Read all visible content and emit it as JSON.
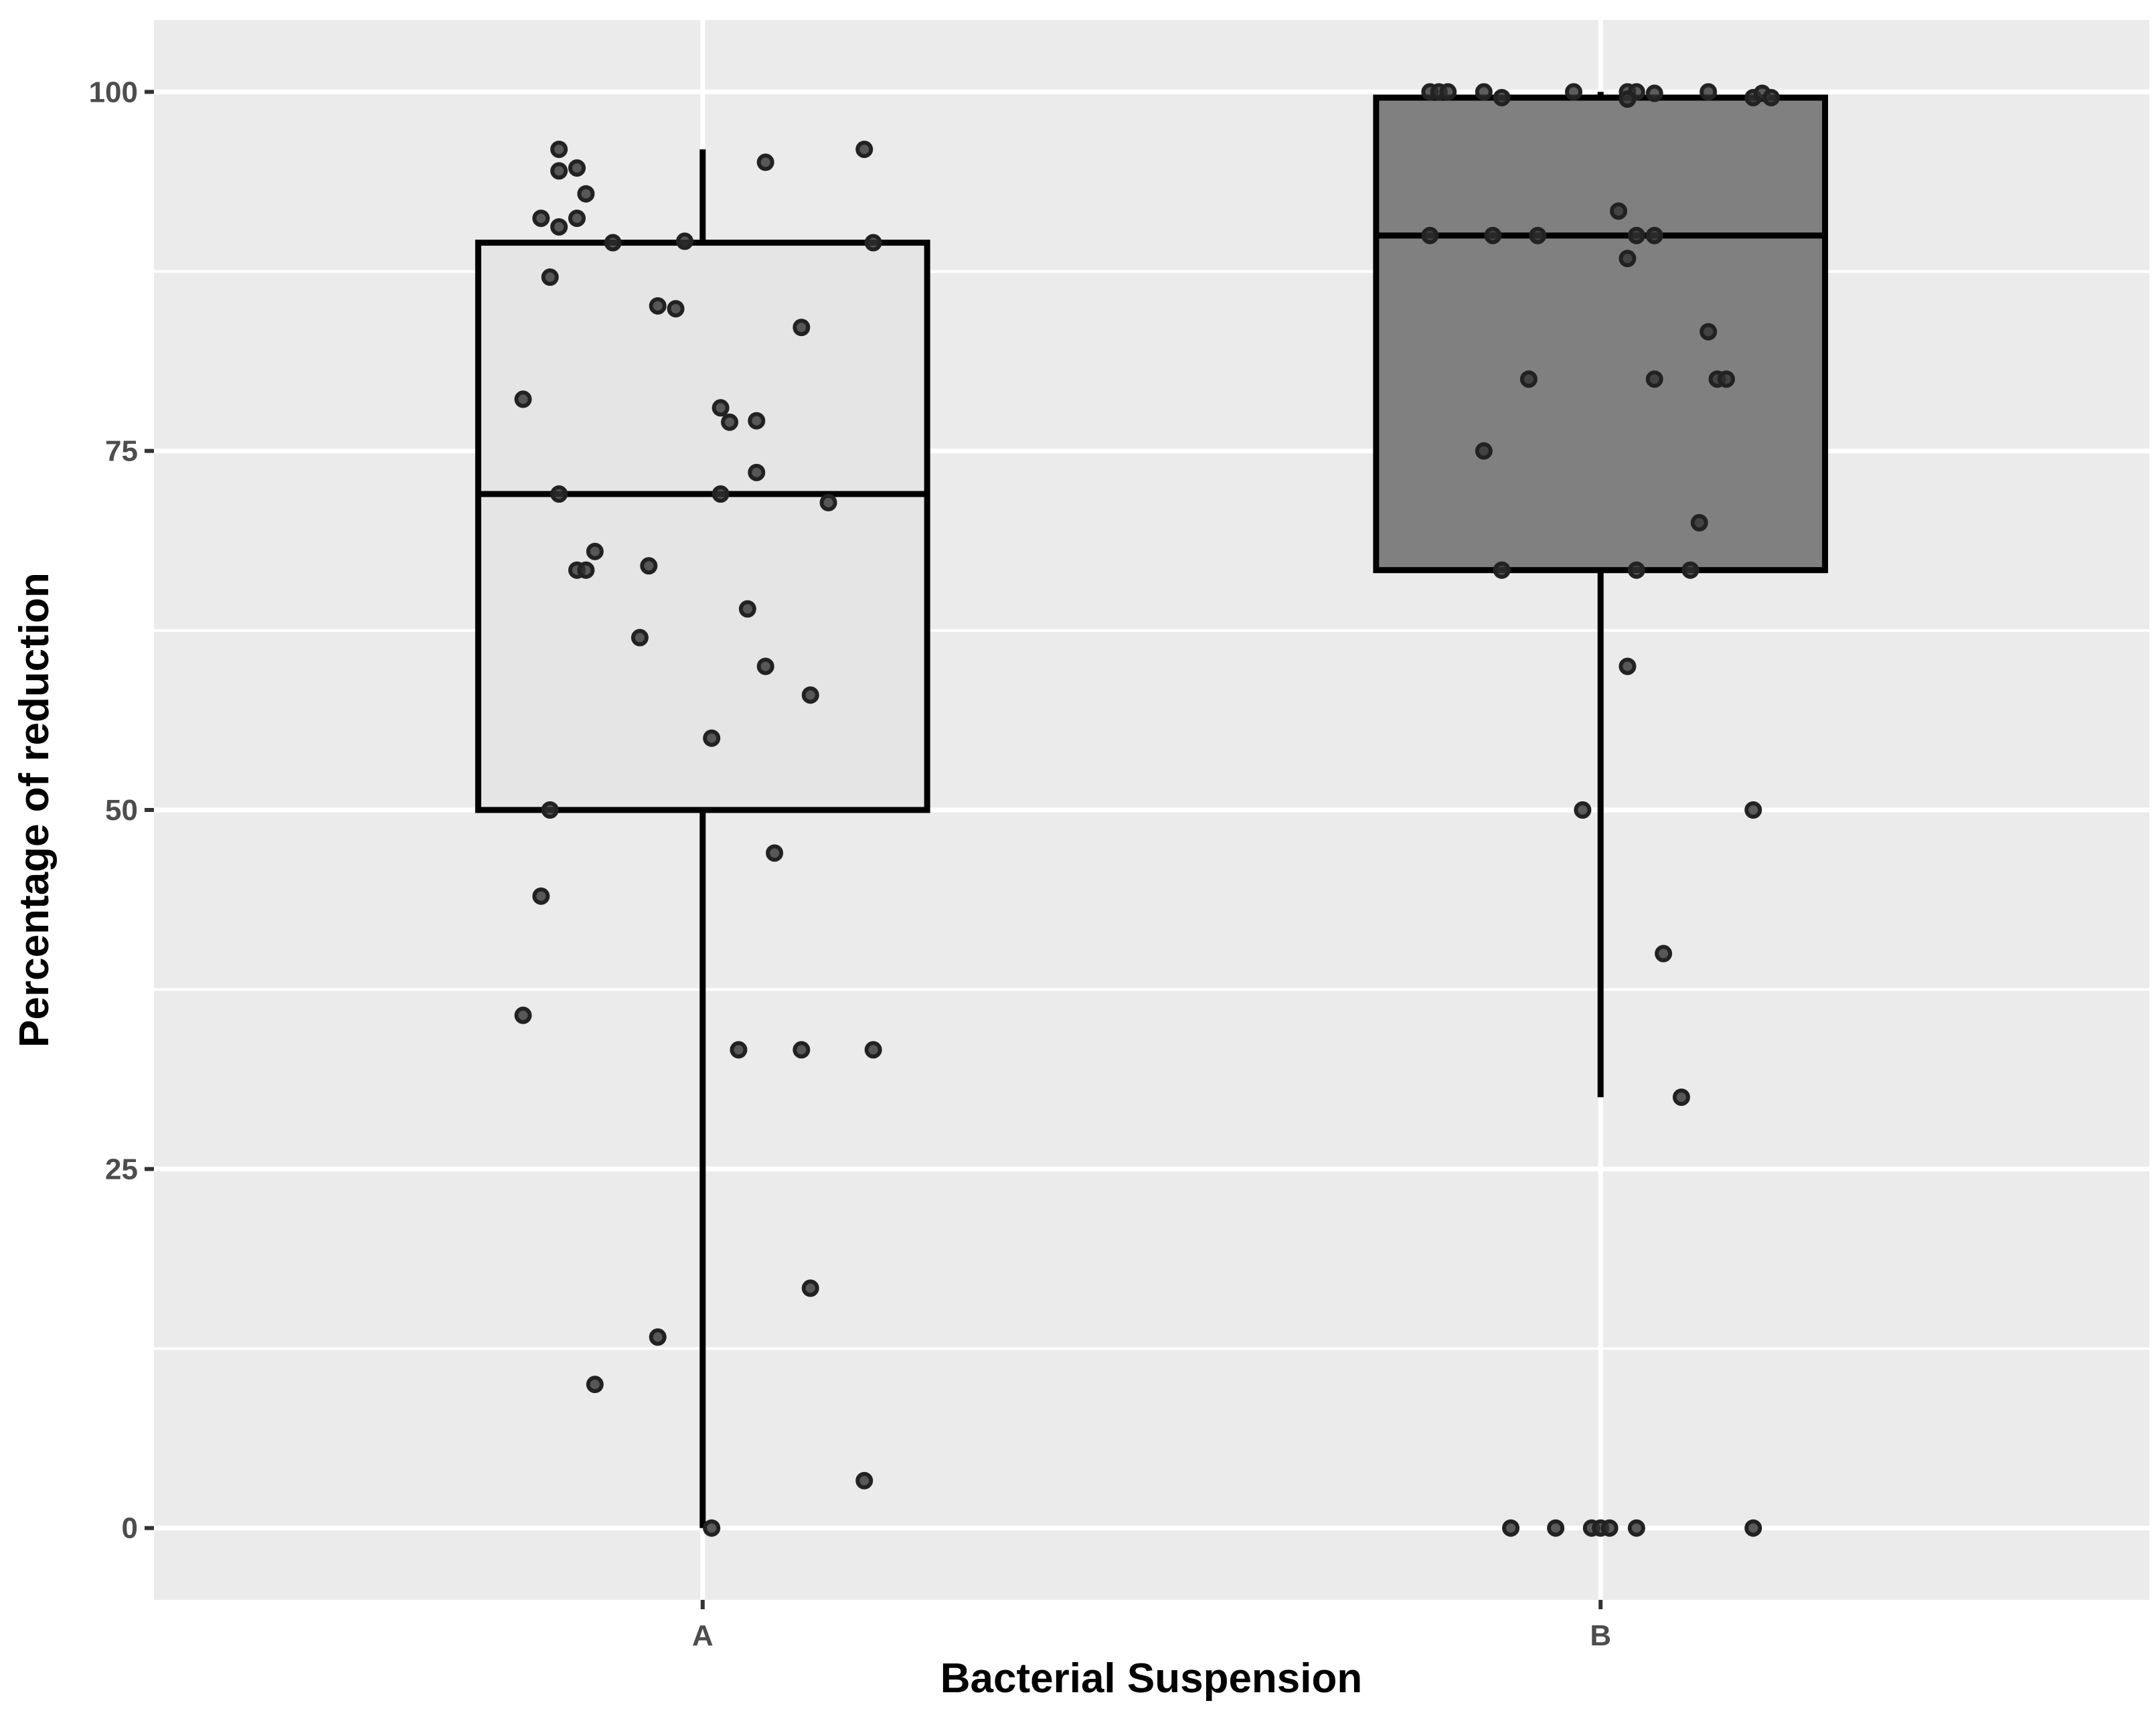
{
  "chart_data": {
    "type": "boxplot",
    "title": "",
    "xlabel": "Bacterial Suspension",
    "ylabel": "Percentage of reduction",
    "categories": [
      "A",
      "B"
    ],
    "ylim": [
      -5,
      105
    ],
    "yticks": [
      0,
      25,
      50,
      75,
      100
    ],
    "grid": true,
    "colors": {
      "panel": "#ebebeb",
      "grid": "#ffffff",
      "box_A": "#e5e5e5",
      "box_B": "#808080",
      "line": "#000000",
      "point": "#333333"
    },
    "boxes": [
      {
        "category": "A",
        "min": 0,
        "q1": 50,
        "median": 72,
        "q3": 89.5,
        "max": 96
      },
      {
        "category": "B",
        "min": 30,
        "q1": 66.7,
        "median": 90,
        "q3": 99.6,
        "max": 100
      }
    ],
    "points": [
      {
        "category": "A",
        "jitter": -0.16,
        "y": 96
      },
      {
        "category": "A",
        "jitter": -0.16,
        "y": 94.5
      },
      {
        "category": "A",
        "jitter": -0.14,
        "y": 94.7
      },
      {
        "category": "A",
        "jitter": -0.13,
        "y": 92.9
      },
      {
        "category": "A",
        "jitter": -0.18,
        "y": 91.2
      },
      {
        "category": "A",
        "jitter": -0.16,
        "y": 90.6
      },
      {
        "category": "A",
        "jitter": -0.14,
        "y": 91.2
      },
      {
        "category": "A",
        "jitter": -0.1,
        "y": 89.5
      },
      {
        "category": "A",
        "jitter": -0.02,
        "y": 89.6
      },
      {
        "category": "A",
        "jitter": 0.07,
        "y": 95.1
      },
      {
        "category": "A",
        "jitter": 0.18,
        "y": 96
      },
      {
        "category": "A",
        "jitter": 0.19,
        "y": 89.5
      },
      {
        "category": "A",
        "jitter": -0.17,
        "y": 87.1
      },
      {
        "category": "A",
        "jitter": -0.05,
        "y": 85.1
      },
      {
        "category": "A",
        "jitter": -0.03,
        "y": 84.9
      },
      {
        "category": "A",
        "jitter": 0.11,
        "y": 83.6
      },
      {
        "category": "A",
        "jitter": -0.2,
        "y": 78.6
      },
      {
        "category": "A",
        "jitter": 0.02,
        "y": 78
      },
      {
        "category": "A",
        "jitter": 0.03,
        "y": 77
      },
      {
        "category": "A",
        "jitter": 0.06,
        "y": 77.1
      },
      {
        "category": "A",
        "jitter": 0.06,
        "y": 73.5
      },
      {
        "category": "A",
        "jitter": -0.16,
        "y": 72
      },
      {
        "category": "A",
        "jitter": 0.02,
        "y": 72
      },
      {
        "category": "A",
        "jitter": 0.14,
        "y": 71.4
      },
      {
        "category": "A",
        "jitter": -0.12,
        "y": 68
      },
      {
        "category": "A",
        "jitter": -0.14,
        "y": 66.7
      },
      {
        "category": "A",
        "jitter": -0.13,
        "y": 66.7
      },
      {
        "category": "A",
        "jitter": -0.06,
        "y": 67
      },
      {
        "category": "A",
        "jitter": 0.05,
        "y": 64
      },
      {
        "category": "A",
        "jitter": -0.07,
        "y": 62
      },
      {
        "category": "A",
        "jitter": 0.07,
        "y": 60
      },
      {
        "category": "A",
        "jitter": 0.12,
        "y": 58
      },
      {
        "category": "A",
        "jitter": 0.01,
        "y": 55
      },
      {
        "category": "A",
        "jitter": -0.17,
        "y": 50
      },
      {
        "category": "A",
        "jitter": 0.08,
        "y": 47
      },
      {
        "category": "A",
        "jitter": -0.18,
        "y": 44
      },
      {
        "category": "A",
        "jitter": -0.2,
        "y": 35.7
      },
      {
        "category": "A",
        "jitter": 0.04,
        "y": 33.3
      },
      {
        "category": "A",
        "jitter": 0.11,
        "y": 33.3
      },
      {
        "category": "A",
        "jitter": 0.19,
        "y": 33.3
      },
      {
        "category": "A",
        "jitter": 0.12,
        "y": 16.7
      },
      {
        "category": "A",
        "jitter": -0.05,
        "y": 13.3
      },
      {
        "category": "A",
        "jitter": -0.12,
        "y": 10
      },
      {
        "category": "A",
        "jitter": 0.18,
        "y": 3.3
      },
      {
        "category": "A",
        "jitter": 0.01,
        "y": 0
      },
      {
        "category": "B",
        "jitter": -0.19,
        "y": 100
      },
      {
        "category": "B",
        "jitter": -0.18,
        "y": 100
      },
      {
        "category": "B",
        "jitter": -0.17,
        "y": 100
      },
      {
        "category": "B",
        "jitter": -0.13,
        "y": 100
      },
      {
        "category": "B",
        "jitter": -0.11,
        "y": 99.6
      },
      {
        "category": "B",
        "jitter": -0.03,
        "y": 100
      },
      {
        "category": "B",
        "jitter": 0.03,
        "y": 100
      },
      {
        "category": "B",
        "jitter": 0.04,
        "y": 100
      },
      {
        "category": "B",
        "jitter": 0.03,
        "y": 99.5
      },
      {
        "category": "B",
        "jitter": 0.06,
        "y": 99.9
      },
      {
        "category": "B",
        "jitter": 0.12,
        "y": 100
      },
      {
        "category": "B",
        "jitter": 0.17,
        "y": 99.6
      },
      {
        "category": "B",
        "jitter": 0.18,
        "y": 99.9
      },
      {
        "category": "B",
        "jitter": 0.19,
        "y": 99.6
      },
      {
        "category": "B",
        "jitter": 0.02,
        "y": 91.7
      },
      {
        "category": "B",
        "jitter": -0.19,
        "y": 90
      },
      {
        "category": "B",
        "jitter": -0.12,
        "y": 90
      },
      {
        "category": "B",
        "jitter": -0.07,
        "y": 90
      },
      {
        "category": "B",
        "jitter": 0.04,
        "y": 90
      },
      {
        "category": "B",
        "jitter": 0.06,
        "y": 90
      },
      {
        "category": "B",
        "jitter": 0.03,
        "y": 88.4
      },
      {
        "category": "B",
        "jitter": 0.12,
        "y": 83.3
      },
      {
        "category": "B",
        "jitter": -0.08,
        "y": 80
      },
      {
        "category": "B",
        "jitter": 0.06,
        "y": 80
      },
      {
        "category": "B",
        "jitter": 0.13,
        "y": 80
      },
      {
        "category": "B",
        "jitter": 0.14,
        "y": 80
      },
      {
        "category": "B",
        "jitter": -0.13,
        "y": 75
      },
      {
        "category": "B",
        "jitter": 0.11,
        "y": 70
      },
      {
        "category": "B",
        "jitter": -0.11,
        "y": 66.7
      },
      {
        "category": "B",
        "jitter": 0.04,
        "y": 66.7
      },
      {
        "category": "B",
        "jitter": 0.1,
        "y": 66.7
      },
      {
        "category": "B",
        "jitter": 0.03,
        "y": 60
      },
      {
        "category": "B",
        "jitter": -0.02,
        "y": 50
      },
      {
        "category": "B",
        "jitter": 0.17,
        "y": 50
      },
      {
        "category": "B",
        "jitter": 0.07,
        "y": 40
      },
      {
        "category": "B",
        "jitter": 0.09,
        "y": 30
      },
      {
        "category": "B",
        "jitter": -0.1,
        "y": 0
      },
      {
        "category": "B",
        "jitter": -0.05,
        "y": 0
      },
      {
        "category": "B",
        "jitter": -0.01,
        "y": 0
      },
      {
        "category": "B",
        "jitter": 0.0,
        "y": 0
      },
      {
        "category": "B",
        "jitter": 0.01,
        "y": 0
      },
      {
        "category": "B",
        "jitter": 0.04,
        "y": 0
      },
      {
        "category": "B",
        "jitter": 0.17,
        "y": 0
      }
    ]
  }
}
